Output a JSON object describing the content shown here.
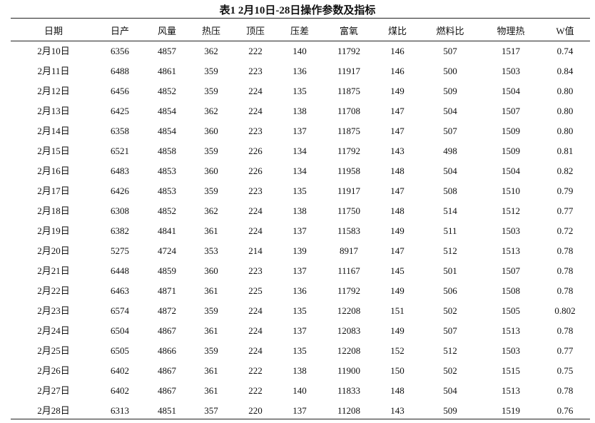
{
  "title": "表1 2月10日-28日操作参数及指标",
  "headers": [
    "日期",
    "日产",
    "风量",
    "热压",
    "顶压",
    "压差",
    "富氧",
    "煤比",
    "燃料比",
    "物理热",
    "W值"
  ],
  "rows": [
    [
      "2月10日",
      "6356",
      "4857",
      "362",
      "222",
      "140",
      "11792",
      "146",
      "507",
      "1517",
      "0.74"
    ],
    [
      "2月11日",
      "6488",
      "4861",
      "359",
      "223",
      "136",
      "11917",
      "146",
      "500",
      "1503",
      "0.84"
    ],
    [
      "2月12日",
      "6456",
      "4852",
      "359",
      "224",
      "135",
      "11875",
      "149",
      "509",
      "1504",
      "0.80"
    ],
    [
      "2月13日",
      "6425",
      "4854",
      "362",
      "224",
      "138",
      "11708",
      "147",
      "504",
      "1507",
      "0.80"
    ],
    [
      "2月14日",
      "6358",
      "4854",
      "360",
      "223",
      "137",
      "11875",
      "147",
      "507",
      "1509",
      "0.80"
    ],
    [
      "2月15日",
      "6521",
      "4858",
      "359",
      "226",
      "134",
      "11792",
      "143",
      "498",
      "1509",
      "0.81"
    ],
    [
      "2月16日",
      "6483",
      "4853",
      "360",
      "226",
      "134",
      "11958",
      "148",
      "504",
      "1504",
      "0.82"
    ],
    [
      "2月17日",
      "6426",
      "4853",
      "359",
      "223",
      "135",
      "11917",
      "147",
      "508",
      "1510",
      "0.79"
    ],
    [
      "2月18日",
      "6308",
      "4852",
      "362",
      "224",
      "138",
      "11750",
      "148",
      "514",
      "1512",
      "0.77"
    ],
    [
      "2月19日",
      "6382",
      "4841",
      "361",
      "224",
      "137",
      "11583",
      "149",
      "511",
      "1503",
      "0.72"
    ],
    [
      "2月20日",
      "5275",
      "4724",
      "353",
      "214",
      "139",
      "8917",
      "147",
      "512",
      "1513",
      "0.78"
    ],
    [
      "2月21日",
      "6448",
      "4859",
      "360",
      "223",
      "137",
      "11167",
      "145",
      "501",
      "1507",
      "0.78"
    ],
    [
      "2月22日",
      "6463",
      "4871",
      "361",
      "225",
      "136",
      "11792",
      "149",
      "506",
      "1508",
      "0.78"
    ],
    [
      "2月23日",
      "6574",
      "4872",
      "359",
      "224",
      "135",
      "12208",
      "151",
      "502",
      "1505",
      "0.802"
    ],
    [
      "2月24日",
      "6504",
      "4867",
      "361",
      "224",
      "137",
      "12083",
      "149",
      "507",
      "1513",
      "0.78"
    ],
    [
      "2月25日",
      "6505",
      "4866",
      "359",
      "224",
      "135",
      "12208",
      "152",
      "512",
      "1503",
      "0.77"
    ],
    [
      "2月26日",
      "6402",
      "4867",
      "361",
      "222",
      "138",
      "11900",
      "150",
      "502",
      "1515",
      "0.75"
    ],
    [
      "2月27日",
      "6402",
      "4867",
      "361",
      "222",
      "140",
      "11833",
      "148",
      "504",
      "1513",
      "0.78"
    ],
    [
      "2月28日",
      "6313",
      "4851",
      "357",
      "220",
      "137",
      "11208",
      "143",
      "509",
      "1519",
      "0.76"
    ]
  ]
}
